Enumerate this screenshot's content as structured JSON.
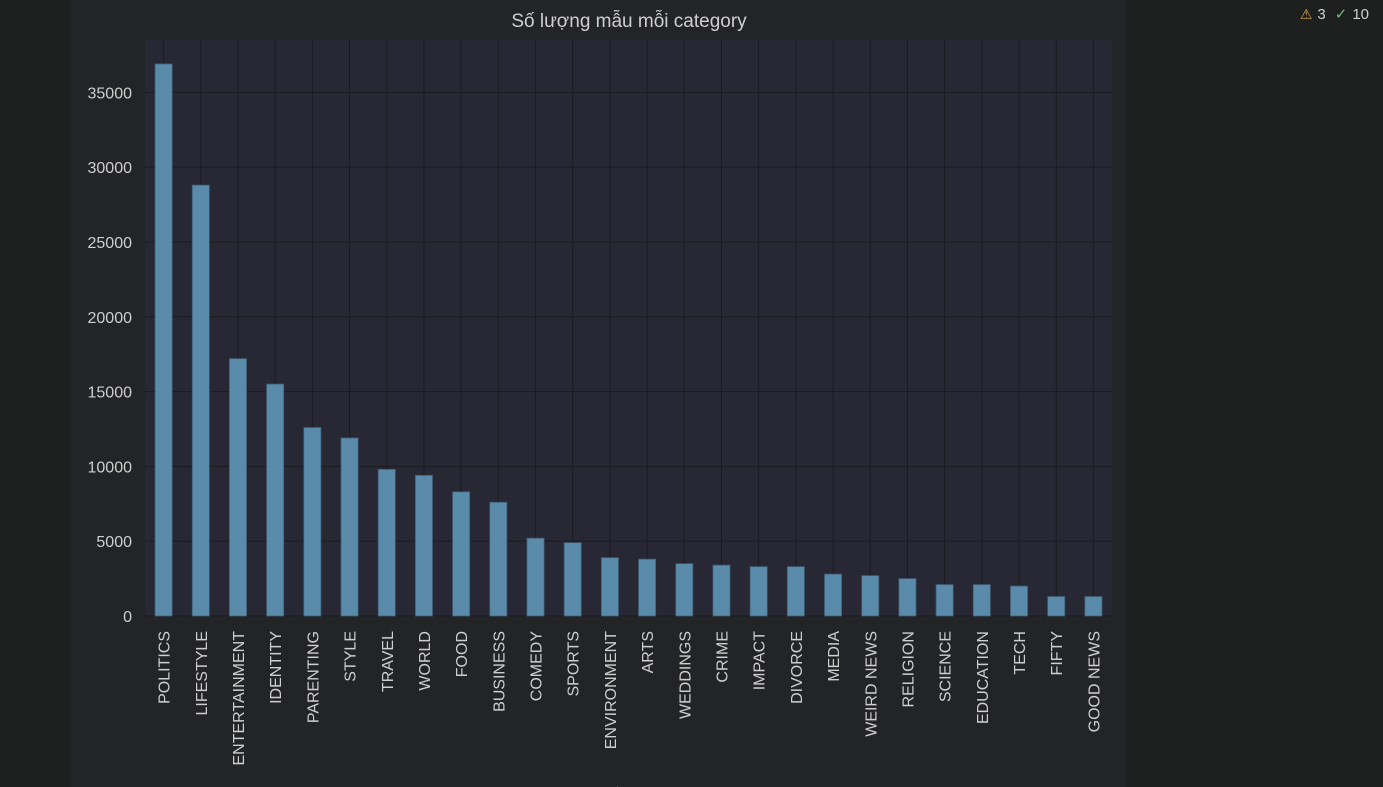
{
  "status": {
    "warnings": "3",
    "checks": "10"
  },
  "chart_data": {
    "type": "bar",
    "title": "Số lượng mẫu mỗi category",
    "xlabel": "category",
    "ylabel": "",
    "ylim": [
      0,
      38500
    ],
    "yticks": [
      0,
      5000,
      10000,
      15000,
      20000,
      25000,
      30000,
      35000
    ],
    "grid": true,
    "bar_color": "#5b8bab",
    "categories": [
      "POLITICS",
      "LIFESTYLE",
      "ENTERTAINMENT",
      "IDENTITY",
      "PARENTING",
      "STYLE",
      "TRAVEL",
      "WORLD",
      "FOOD",
      "BUSINESS",
      "COMEDY",
      "SPORTS",
      "ENVIRONMENT",
      "ARTS",
      "WEDDINGS",
      "CRIME",
      "IMPACT",
      "DIVORCE",
      "MEDIA",
      "WEIRD NEWS",
      "RELIGION",
      "SCIENCE",
      "EDUCATION",
      "TECH",
      "FIFTY",
      "GOOD NEWS"
    ],
    "values": [
      36900,
      28800,
      17200,
      15500,
      12600,
      11900,
      9800,
      9400,
      8300,
      7600,
      5200,
      4900,
      3900,
      3800,
      3500,
      3400,
      3300,
      3300,
      2800,
      2700,
      2500,
      2100,
      2100,
      2000,
      1300,
      1300
    ]
  }
}
